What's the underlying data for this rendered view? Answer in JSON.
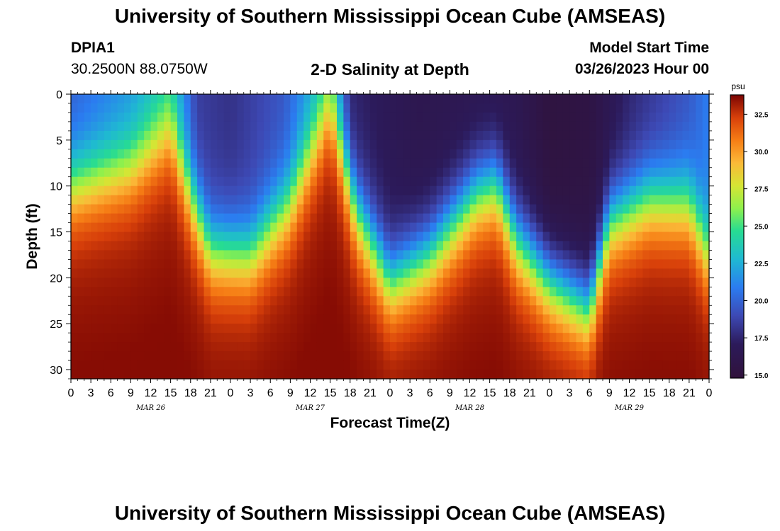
{
  "header": {
    "title": "University of Southern Mississippi Ocean Cube (AMSEAS)",
    "station_id": "DPIA1",
    "coords": "30.2500N  88.0750W",
    "chart_title": "2-D Salinity at Depth",
    "start_label": "Model Start Time",
    "start_value": "03/26/2023 Hour 00"
  },
  "footer": {
    "title": "University of Southern Mississippi Ocean Cube (AMSEAS)"
  },
  "chart_data": {
    "type": "heatmap",
    "title": "2-D Salinity at Depth",
    "xlabel": "Forecast Time(Z)",
    "ylabel": "Depth (ft)",
    "x_range_hours": [
      0,
      96
    ],
    "ylim": [
      0,
      31
    ],
    "y_ticks": [
      0,
      5,
      10,
      15,
      20,
      25,
      30
    ],
    "x_tick_labels": [
      "0",
      "3",
      "6",
      "9",
      "12",
      "15",
      "18",
      "21",
      "0",
      "3",
      "6",
      "9",
      "12",
      "15",
      "18",
      "21",
      "0",
      "3",
      "6",
      "9",
      "12",
      "15",
      "18",
      "21",
      "0",
      "3",
      "6",
      "9",
      "12",
      "15",
      "18",
      "21",
      "0"
    ],
    "day_labels": [
      {
        "hour": 12,
        "label": "MAR 26"
      },
      {
        "hour": 36,
        "label": "MAR 27"
      },
      {
        "hour": 60,
        "label": "MAR 28"
      },
      {
        "hour": 84,
        "label": "MAR 29"
      }
    ],
    "colorbar": {
      "unit": "psu",
      "min": 14.8,
      "max": 33.8,
      "ticks": [
        15.0,
        17.5,
        20.0,
        22.5,
        25.0,
        27.5,
        30.0,
        32.5
      ],
      "tick_labels": [
        "15.0",
        "17.5",
        "20.0",
        "22.5",
        "25.0",
        "27.5",
        "30.0",
        "32.5"
      ]
    },
    "surface_salinity_psu": [
      {
        "hour": 0,
        "value": 19.8
      },
      {
        "hour": 9,
        "value": 21.5
      },
      {
        "hour": 15,
        "value": 23.5
      },
      {
        "hour": 19,
        "value": 18.5
      },
      {
        "hour": 24,
        "value": 18.0
      },
      {
        "hour": 32,
        "value": 19.5
      },
      {
        "hour": 37,
        "value": 22.5
      },
      {
        "hour": 39,
        "value": 24.0
      },
      {
        "hour": 42,
        "value": 17.5
      },
      {
        "hour": 52,
        "value": 16.3
      },
      {
        "hour": 60,
        "value": 16.5
      },
      {
        "hour": 67,
        "value": 16.5
      },
      {
        "hour": 72,
        "value": 15.2
      },
      {
        "hour": 78,
        "value": 15.5
      },
      {
        "hour": 84,
        "value": 17.5
      },
      {
        "hour": 93,
        "value": 19.5
      },
      {
        "hour": 96,
        "value": 21.0
      }
    ],
    "halocline_depth_ft": [
      {
        "hour": 0,
        "depth": 10.0
      },
      {
        "hour": 9,
        "depth": 8.0
      },
      {
        "hour": 15,
        "depth": 4.0
      },
      {
        "hour": 18,
        "depth": 11.0
      },
      {
        "hour": 21,
        "depth": 17.0
      },
      {
        "hour": 27,
        "depth": 17.5
      },
      {
        "hour": 33,
        "depth": 12.0
      },
      {
        "hour": 39,
        "depth": 1.5
      },
      {
        "hour": 43,
        "depth": 13.0
      },
      {
        "hour": 48,
        "depth": 20.5
      },
      {
        "hour": 54,
        "depth": 17.5
      },
      {
        "hour": 61,
        "depth": 11.0
      },
      {
        "hour": 64,
        "depth": 10.0
      },
      {
        "hour": 67,
        "depth": 16.0
      },
      {
        "hour": 72,
        "depth": 20.5
      },
      {
        "hour": 78,
        "depth": 23.5
      },
      {
        "hour": 81,
        "depth": 14.0
      },
      {
        "hour": 87,
        "depth": 11.5
      },
      {
        "hour": 93,
        "depth": 12.0
      },
      {
        "hour": 96,
        "depth": 18.0
      }
    ],
    "deep_salinity_psu": 33.0
  }
}
